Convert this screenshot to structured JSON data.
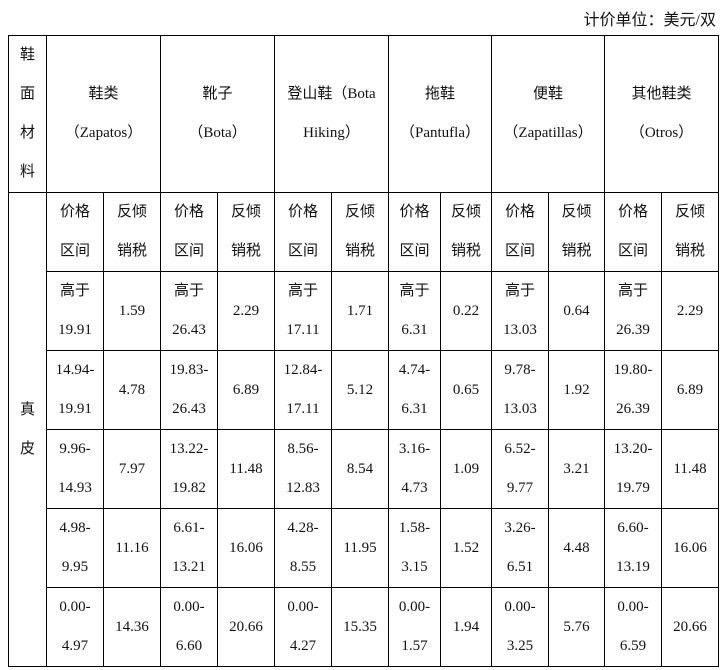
{
  "unit_note": "计价单位：美元/双",
  "material_header": [
    "鞋",
    "面",
    "材",
    "料"
  ],
  "material": [
    "真",
    "皮"
  ],
  "categories": [
    {
      "cn": "鞋类",
      "es": "（Zapatos）"
    },
    {
      "cn": "靴子",
      "es": "（Bota）"
    },
    {
      "cn": "登山鞋（Bota",
      "es": "Hiking）"
    },
    {
      "cn": "拖鞋",
      "es": "（Pantufla）"
    },
    {
      "cn": "便鞋",
      "es": "（Zapatillas）"
    },
    {
      "cn": "其他鞋类",
      "es": "（Otros）"
    }
  ],
  "subheaders": {
    "price": [
      "价格",
      "区间"
    ],
    "duty": [
      "反倾",
      "销税"
    ]
  },
  "rows": [
    [
      [
        "高于",
        "19.91"
      ],
      "1.59",
      [
        "高于",
        "26.43"
      ],
      "2.29",
      [
        "高于",
        "17.11"
      ],
      "1.71",
      [
        "高于",
        "6.31"
      ],
      "0.22",
      [
        "高于",
        "13.03"
      ],
      "0.64",
      [
        "高于",
        "26.39"
      ],
      "2.29"
    ],
    [
      [
        "14.94-",
        "19.91"
      ],
      "4.78",
      [
        "19.83-",
        "26.43"
      ],
      "6.89",
      [
        "12.84-",
        "17.11"
      ],
      "5.12",
      [
        "4.74-",
        "6.31"
      ],
      "0.65",
      [
        "9.78-",
        "13.03"
      ],
      "1.92",
      [
        "19.80-",
        "26.39"
      ],
      "6.89"
    ],
    [
      [
        "9.96-",
        "14.93"
      ],
      "7.97",
      [
        "13.22-",
        "19.82"
      ],
      "11.48",
      [
        "8.56-",
        "12.83"
      ],
      "8.54",
      [
        "3.16-",
        "4.73"
      ],
      "1.09",
      [
        "6.52-",
        "9.77"
      ],
      "3.21",
      [
        "13.20-",
        "19.79"
      ],
      "11.48"
    ],
    [
      [
        "4.98-",
        "9.95"
      ],
      "11.16",
      [
        "6.61-",
        "13.21"
      ],
      "16.06",
      [
        "4.28-",
        "8.55"
      ],
      "11.95",
      [
        "1.58-",
        "3.15"
      ],
      "1.52",
      [
        "3.26-",
        "6.51"
      ],
      "4.48",
      [
        "6.60-",
        "13.19"
      ],
      "16.06"
    ],
    [
      [
        "0.00-",
        "4.97"
      ],
      "14.36",
      [
        "0.00-",
        "6.60"
      ],
      "20.66",
      [
        "0.00-",
        "4.27"
      ],
      "15.35",
      [
        "0.00-",
        "1.57"
      ],
      "1.94",
      [
        "0.00-",
        "3.25"
      ],
      "5.76",
      [
        "0.00-",
        "6.59"
      ],
      "20.66"
    ]
  ]
}
